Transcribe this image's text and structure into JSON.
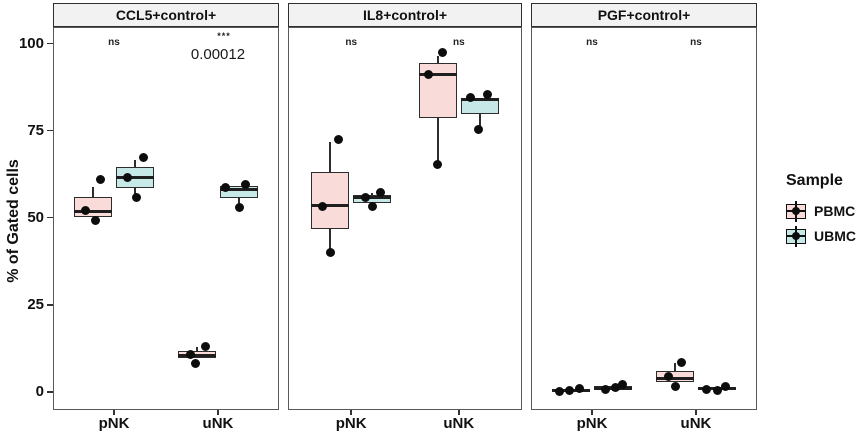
{
  "chart_data": {
    "type": "boxplot",
    "title": "",
    "ylabel": "% of Gated cells",
    "xlabel": "",
    "ylim": [
      -5.2,
      104.7
    ],
    "yticks": [
      0,
      25,
      50,
      75,
      100
    ],
    "categories": [
      "pNK",
      "uNK"
    ],
    "legend_title": "Sample",
    "series": [
      {
        "name": "PBMC",
        "color": "#f9dcd9"
      },
      {
        "name": "UBMC",
        "color": "#c6e9e7"
      }
    ],
    "panels": [
      {
        "title": "CCL5+control+",
        "annotations": [
          {
            "group": "pNK",
            "text": "ns"
          },
          {
            "group": "uNK",
            "text": "0.00012",
            "stars": "***"
          }
        ],
        "boxes": [
          {
            "group": "pNK",
            "sample": "PBMC",
            "lo": 50.3,
            "q1": 50.3,
            "med": 51.9,
            "q3": 56.0,
            "hi": 58.8,
            "points": [
              {
                "dx": -8,
                "v": 52.0
              },
              {
                "dx": 2,
                "v": 49.2
              },
              {
                "dx": 7,
                "v": 61.0
              }
            ]
          },
          {
            "group": "pNK",
            "sample": "UBMC",
            "lo": 56.0,
            "q1": 58.6,
            "med": 61.5,
            "q3": 64.4,
            "hi": 66.4,
            "points": [
              {
                "dx": -8,
                "v": 61.5
              },
              {
                "dx": 1,
                "v": 55.7
              },
              {
                "dx": 8,
                "v": 67.3
              }
            ]
          },
          {
            "group": "uNK",
            "sample": "PBMC",
            "lo": 9.7,
            "q1": 9.7,
            "med": 10.5,
            "q3": 11.6,
            "hi": 12.9,
            "points": [
              {
                "dx": -6,
                "v": 10.6
              },
              {
                "dx": 9,
                "v": 12.9
              },
              {
                "dx": -1,
                "v": 8.1
              }
            ]
          },
          {
            "group": "uNK",
            "sample": "UBMC",
            "lo": 52.9,
            "q1": 55.7,
            "med": 58.2,
            "q3": 59.2,
            "hi": 59.2,
            "points": [
              {
                "dx": -13,
                "v": 58.6
              },
              {
                "dx": 7,
                "v": 59.5
              },
              {
                "dx": 1,
                "v": 52.9
              }
            ]
          }
        ]
      },
      {
        "title": "IL8+control+",
        "annotations": [
          {
            "group": "pNK",
            "text": "ns"
          },
          {
            "group": "uNK",
            "text": "ns"
          }
        ],
        "boxes": [
          {
            "group": "pNK",
            "sample": "PBMC",
            "lo": 40.0,
            "q1": 46.8,
            "med": 53.4,
            "q3": 63.0,
            "hi": 71.8,
            "points": [
              {
                "dx": 8,
                "v": 72.4
              },
              {
                "dx": -8,
                "v": 53.2
              },
              {
                "dx": 0,
                "v": 40.0
              }
            ]
          },
          {
            "group": "pNK",
            "sample": "UBMC",
            "lo": 54.3,
            "q1": 54.3,
            "med": 55.7,
            "q3": 56.6,
            "hi": 57.0,
            "points": [
              {
                "dx": -7,
                "v": 55.8
              },
              {
                "dx": 8,
                "v": 57.2
              },
              {
                "dx": 0,
                "v": 53.2
              }
            ]
          },
          {
            "group": "uNK",
            "sample": "PBMC",
            "lo": 65.2,
            "q1": 78.7,
            "med": 91.1,
            "q3": 94.3,
            "hi": 96.5,
            "points": [
              {
                "dx": -9,
                "v": 91.1
              },
              {
                "dx": 5,
                "v": 97.4
              },
              {
                "dx": 0,
                "v": 65.2
              }
            ]
          },
          {
            "group": "uNK",
            "sample": "UBMC",
            "lo": 75.9,
            "q1": 79.6,
            "med": 83.8,
            "q3": 84.3,
            "hi": 84.3,
            "points": [
              {
                "dx": -9,
                "v": 84.5
              },
              {
                "dx": 8,
                "v": 85.3
              },
              {
                "dx": -1,
                "v": 75.3
              }
            ]
          }
        ]
      },
      {
        "title": "PGF+control+",
        "annotations": [
          {
            "group": "pNK",
            "text": "ns"
          },
          {
            "group": "uNK",
            "text": "ns"
          }
        ],
        "boxes": [
          {
            "group": "pNK",
            "sample": "PBMC",
            "lo": 0.0,
            "q1": 0.0,
            "med": 0.4,
            "q3": 0.9,
            "hi": 1.0,
            "points": [
              {
                "dx": -12,
                "v": 0.1
              },
              {
                "dx": -2,
                "v": 0.5
              },
              {
                "dx": 8,
                "v": 1.0
              }
            ]
          },
          {
            "group": "pNK",
            "sample": "UBMC",
            "lo": 0.2,
            "q1": 0.4,
            "med": 1.0,
            "q3": 1.6,
            "hi": 2.0,
            "points": [
              {
                "dx": -8,
                "v": 0.8
              },
              {
                "dx": 2,
                "v": 1.2
              },
              {
                "dx": 9,
                "v": 2.1
              }
            ]
          },
          {
            "group": "uNK",
            "sample": "PBMC",
            "lo": 2.9,
            "q1": 2.9,
            "med": 3.7,
            "q3": 6.0,
            "hi": 8.4,
            "points": [
              {
                "dx": -6,
                "v": 4.3
              },
              {
                "dx": 7,
                "v": 8.3
              },
              {
                "dx": 1,
                "v": 1.5
              }
            ]
          },
          {
            "group": "uNK",
            "sample": "UBMC",
            "lo": 0.3,
            "q1": 0.5,
            "med": 1.1,
            "q3": 1.5,
            "hi": 1.5,
            "points": [
              {
                "dx": -10,
                "v": 0.8
              },
              {
                "dx": 1,
                "v": 0.5
              },
              {
                "dx": 9,
                "v": 1.6
              }
            ]
          }
        ]
      }
    ]
  }
}
